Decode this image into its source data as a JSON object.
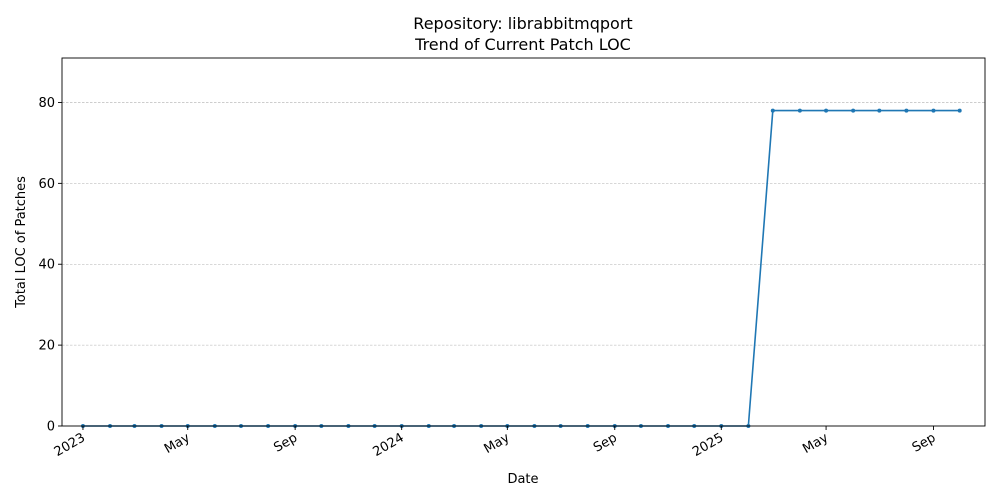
{
  "chart_data": {
    "type": "line",
    "title_line1": "Repository: librabbitmqport",
    "title_line2": "Trend of Current Patch LOC",
    "xlabel": "Date",
    "ylabel": "Total LOC of Patches",
    "ylim": [
      0,
      91
    ],
    "yticks": [
      0,
      20,
      40,
      60,
      80
    ],
    "xlim": [
      "2022-12-08",
      "2025-10-30"
    ],
    "xticks": [
      {
        "date": "2023-01-01",
        "label": "2023"
      },
      {
        "date": "2023-05-01",
        "label": "May"
      },
      {
        "date": "2023-09-01",
        "label": "Sep"
      },
      {
        "date": "2024-01-01",
        "label": "2024"
      },
      {
        "date": "2024-05-01",
        "label": "May"
      },
      {
        "date": "2024-09-01",
        "label": "Sep"
      },
      {
        "date": "2025-01-01",
        "label": "2025"
      },
      {
        "date": "2025-05-01",
        "label": "May"
      },
      {
        "date": "2025-09-01",
        "label": "Sep"
      }
    ],
    "grid": "y-major",
    "color": "#1f77b4",
    "series": [
      {
        "x": [
          "2023-01-01",
          "2023-02-01",
          "2023-03-01",
          "2023-04-01",
          "2023-05-01",
          "2023-06-01",
          "2023-07-01",
          "2023-08-01",
          "2023-09-01",
          "2023-10-01",
          "2023-11-01",
          "2023-12-01",
          "2024-01-01",
          "2024-02-01",
          "2024-03-01",
          "2024-04-01",
          "2024-05-01",
          "2024-06-01",
          "2024-07-01",
          "2024-08-01",
          "2024-09-01",
          "2024-10-01",
          "2024-11-01",
          "2024-12-01",
          "2025-01-01",
          "2025-02-01",
          "2025-03-01",
          "2025-04-01",
          "2025-05-01",
          "2025-06-01",
          "2025-07-01",
          "2025-08-01",
          "2025-09-01",
          "2025-10-01"
        ],
        "y": [
          0,
          0,
          0,
          0,
          0,
          0,
          0,
          0,
          0,
          0,
          0,
          0,
          0,
          0,
          0,
          0,
          0,
          0,
          0,
          0,
          0,
          0,
          0,
          0,
          0,
          0,
          78,
          78,
          78,
          78,
          78,
          78,
          78,
          78
        ]
      }
    ]
  }
}
